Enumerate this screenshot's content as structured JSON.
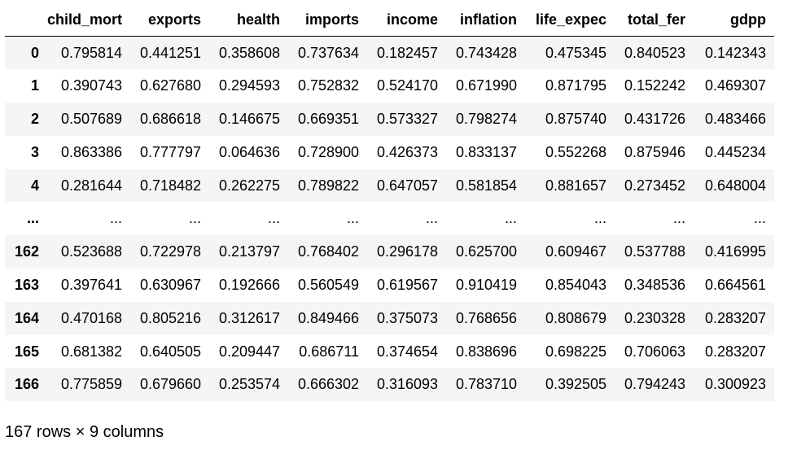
{
  "table": {
    "columns": [
      "child_mort",
      "exports",
      "health",
      "imports",
      "income",
      "inflation",
      "life_expec",
      "total_fer",
      "gdpp"
    ],
    "rows": [
      {
        "index": "0",
        "values": [
          "0.795814",
          "0.441251",
          "0.358608",
          "0.737634",
          "0.182457",
          "0.743428",
          "0.475345",
          "0.840523",
          "0.142343"
        ]
      },
      {
        "index": "1",
        "values": [
          "0.390743",
          "0.627680",
          "0.294593",
          "0.752832",
          "0.524170",
          "0.671990",
          "0.871795",
          "0.152242",
          "0.469307"
        ]
      },
      {
        "index": "2",
        "values": [
          "0.507689",
          "0.686618",
          "0.146675",
          "0.669351",
          "0.573327",
          "0.798274",
          "0.875740",
          "0.431726",
          "0.483466"
        ]
      },
      {
        "index": "3",
        "values": [
          "0.863386",
          "0.777797",
          "0.064636",
          "0.728900",
          "0.426373",
          "0.833137",
          "0.552268",
          "0.875946",
          "0.445234"
        ]
      },
      {
        "index": "4",
        "values": [
          "0.281644",
          "0.718482",
          "0.262275",
          "0.789822",
          "0.647057",
          "0.581854",
          "0.881657",
          "0.273452",
          "0.648004"
        ]
      },
      {
        "index": "...",
        "values": [
          "...",
          "...",
          "...",
          "...",
          "...",
          "...",
          "...",
          "...",
          "..."
        ]
      },
      {
        "index": "162",
        "values": [
          "0.523688",
          "0.722978",
          "0.213797",
          "0.768402",
          "0.296178",
          "0.625700",
          "0.609467",
          "0.537788",
          "0.416995"
        ]
      },
      {
        "index": "163",
        "values": [
          "0.397641",
          "0.630967",
          "0.192666",
          "0.560549",
          "0.619567",
          "0.910419",
          "0.854043",
          "0.348536",
          "0.664561"
        ]
      },
      {
        "index": "164",
        "values": [
          "0.470168",
          "0.805216",
          "0.312617",
          "0.849466",
          "0.375073",
          "0.768656",
          "0.808679",
          "0.230328",
          "0.283207"
        ]
      },
      {
        "index": "165",
        "values": [
          "0.681382",
          "0.640505",
          "0.209447",
          "0.686711",
          "0.374654",
          "0.838696",
          "0.698225",
          "0.706063",
          "0.283207"
        ]
      },
      {
        "index": "166",
        "values": [
          "0.775859",
          "0.679660",
          "0.253574",
          "0.666302",
          "0.316093",
          "0.783710",
          "0.392505",
          "0.794243",
          "0.300923"
        ]
      }
    ]
  },
  "shape_caption": "167 rows × 9 columns",
  "colors": {
    "stripe": "#f5f5f5",
    "background": "#ffffff",
    "text": "#000000",
    "header_rule": "#000000"
  }
}
